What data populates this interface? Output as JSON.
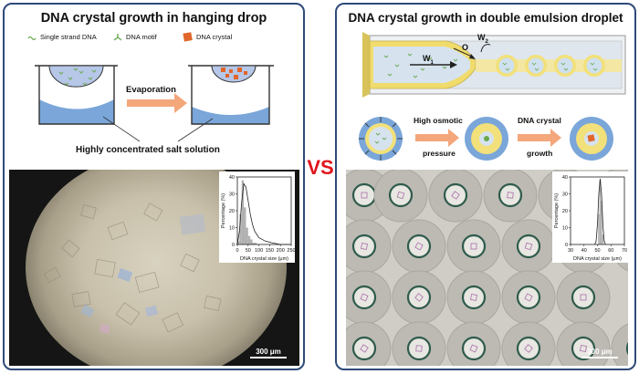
{
  "left": {
    "title": "DNA crystal growth in hanging drop",
    "legend": {
      "ssdna": "Single strand DNA",
      "motif": "DNA motif",
      "crystal": "DNA crystal"
    },
    "arrow_label": "Evaporation",
    "salt_label": "Highly concentrated salt solution",
    "scale_bar": "300 μm",
    "histogram": {
      "ylabel": "Percentage (%)",
      "xlabel": "DNA crystal size (μm)",
      "xticks": [
        "0",
        "50",
        "100",
        "150",
        "200",
        "250"
      ],
      "yticks": [
        "0",
        "10",
        "20",
        "30",
        "40"
      ]
    }
  },
  "vs_label": "VS",
  "right": {
    "title": "DNA crystal growth in double emulsion droplet",
    "phase_labels": {
      "o": "O",
      "w1": "W",
      "w1_sub": "1",
      "w2": "W",
      "w2_sub": "2"
    },
    "step1_label_a": "High osmotic",
    "step1_label_b": "pressure",
    "step2_label_a": "DNA crystal",
    "step2_label_b": "growth",
    "scale_bar": "300 μm",
    "histogram": {
      "ylabel": "Percentage (%)",
      "xlabel": "DNA crystal size (μm)",
      "xticks": [
        "30",
        "40",
        "50",
        "60",
        "70"
      ],
      "yticks": [
        "0",
        "10",
        "20",
        "30",
        "40"
      ]
    }
  },
  "colors": {
    "border": "#2e4a78",
    "vs": "#e0161d",
    "water": "#7aa6d9",
    "arrow": "#f3a77b",
    "crystal": "#e0662a",
    "oil_shell": "#f2e07a"
  },
  "chart_data": [
    {
      "type": "bar",
      "title": "",
      "xlabel": "DNA crystal size (μm)",
      "ylabel": "Percentage (%)",
      "xlim": [
        0,
        250
      ],
      "ylim": [
        0,
        40
      ],
      "x": [
        5,
        15,
        25,
        35,
        45,
        55,
        65,
        75,
        85
      ],
      "values": [
        2,
        18,
        38,
        22,
        10,
        5,
        3,
        1,
        1
      ],
      "fit": {
        "type": "line",
        "x": [
          0,
          10,
          20,
          30,
          40,
          50,
          60,
          70,
          80,
          100,
          130,
          160,
          200,
          250
        ],
        "y": [
          0,
          8,
          25,
          36,
          34,
          26,
          18,
          12,
          8,
          4,
          2,
          1,
          0,
          0
        ]
      }
    },
    {
      "type": "bar",
      "title": "",
      "xlabel": "DNA crystal size (μm)",
      "ylabel": "Percentage (%)",
      "xlim": [
        30,
        70
      ],
      "ylim": [
        0,
        40
      ],
      "x": [
        51,
        52,
        53,
        54
      ],
      "values": [
        18,
        38,
        26,
        6
      ],
      "fit": {
        "type": "line",
        "x": [
          48,
          49,
          50,
          51,
          52,
          53,
          54,
          55,
          56
        ],
        "y": [
          0,
          2,
          12,
          30,
          39,
          30,
          12,
          2,
          0
        ]
      }
    }
  ]
}
